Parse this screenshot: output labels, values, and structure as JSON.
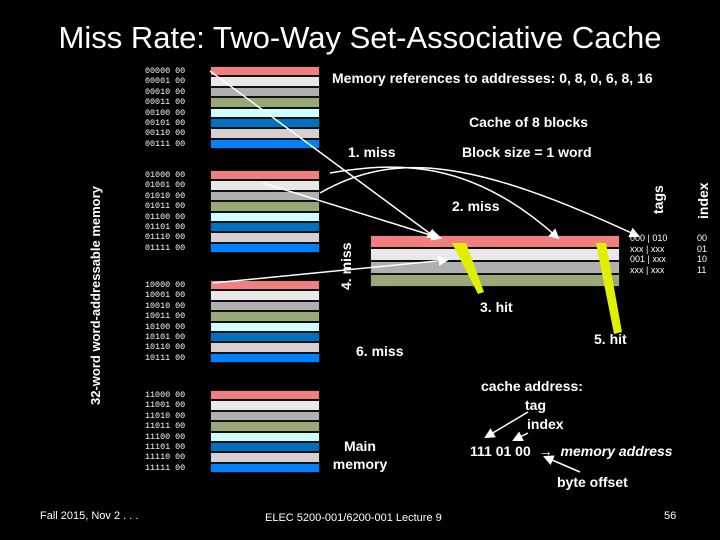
{
  "title": "Miss Rate: Two-Way Set-Associative Cache",
  "memory": {
    "side_label": "32-word word-addressable memory",
    "addresses": [
      [
        "00000 00",
        "00001 00",
        "00010 00",
        "00011 00",
        "00100 00",
        "00101 00",
        "00110 00",
        "00111 00"
      ],
      [
        "01000 00",
        "01001 00",
        "01010 00",
        "01011 00",
        "01100 00",
        "01101 00",
        "01110 00",
        "01111 00"
      ],
      [
        "10000 00",
        "10001 00",
        "10010 00",
        "10011 00",
        "10100 00",
        "10101 00",
        "10110 00",
        "10111 00"
      ],
      [
        "11000 00",
        "11001 00",
        "11010 00",
        "11011 00",
        "11100 00",
        "11101 00",
        "11110 00",
        "11111 00"
      ]
    ],
    "row_colors": [
      "#f08080",
      "#e8e8e8",
      "#b0b0b0",
      "#98a878",
      "#d0ffff",
      "#0070c0",
      "#d8d0d0",
      "#0080ff"
    ],
    "label": "Main memory"
  },
  "header": {
    "references": "Memory references to addresses: 0, 8, 0, 6, 8, 16",
    "cache_size": "Cache of 8 blocks",
    "block_size": "Block size = 1 word"
  },
  "cache": {
    "tags_label": "tags",
    "index_label": "index",
    "tag_rows": [
      "000 | 010",
      "xxx | xxx",
      "001 | xxx",
      "xxx | xxx"
    ],
    "index_rows": [
      "00",
      "01",
      "10",
      "11"
    ]
  },
  "events": {
    "e1": "1. miss",
    "e2": "2. miss",
    "e3": "3. hit",
    "e4": "4. miss",
    "e5": "5. hit",
    "e6": "6. miss"
  },
  "address_note": {
    "line1": "cache address:",
    "line2": "tag",
    "line3": "index",
    "bits": "111 01 00",
    "arrow": "→",
    "mapped": "memory address",
    "offset": "byte offset"
  },
  "footer": {
    "left": "Fall 2015, Nov 2 . . .",
    "center": "ELEC 5200-001/6200-001 Lecture 9",
    "page": "56"
  }
}
